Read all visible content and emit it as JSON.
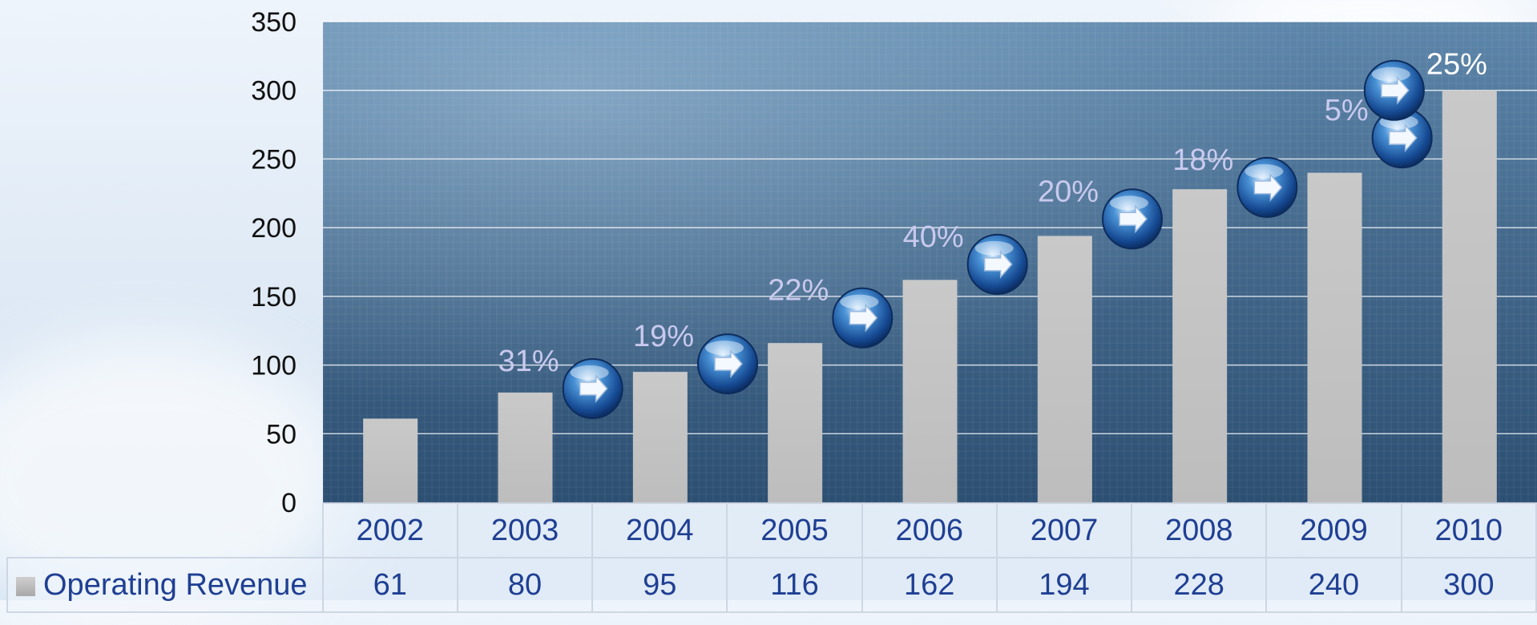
{
  "chart_data": {
    "type": "bar",
    "categories": [
      "2002",
      "2003",
      "2004",
      "2005",
      "2006",
      "2007",
      "2008",
      "2009",
      "2010"
    ],
    "series": [
      {
        "name": "Operating Revenue",
        "values": [
          61,
          80,
          95,
          116,
          162,
          194,
          228,
          240,
          300
        ]
      }
    ],
    "ylim": [
      0,
      350
    ],
    "yticks": [
      "0",
      "50",
      "100",
      "150",
      "200",
      "250",
      "300",
      "350"
    ],
    "grid": true,
    "growth_annotations": [
      {
        "between": [
          "2003",
          "2004"
        ],
        "label": "31%"
      },
      {
        "between": [
          "2004",
          "2005"
        ],
        "label": "19%"
      },
      {
        "between": [
          "2005",
          "2006"
        ],
        "label": "22%"
      },
      {
        "between": [
          "2006",
          "2007"
        ],
        "label": "40%"
      },
      {
        "between": [
          "2007",
          "2008"
        ],
        "label": "20%"
      },
      {
        "between": [
          "2008",
          "2009"
        ],
        "label": "18%"
      },
      {
        "between": [
          "2009",
          "2010"
        ],
        "label": "5%"
      },
      {
        "between": [
          "2010"
        ],
        "label": "25%"
      }
    ],
    "colors": {
      "bar": "#c4c4c4",
      "plot_background": "#44698c",
      "annotation_text": "#c9c9ee",
      "last_annotation_text": "#ffffff",
      "table_text": "#1f3f93"
    },
    "data_table": {
      "series_label": "Operating Revenue"
    }
  }
}
